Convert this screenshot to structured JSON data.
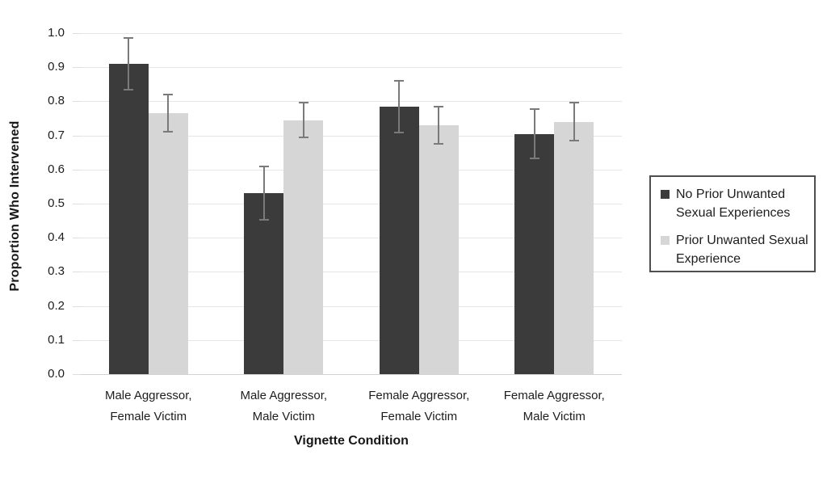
{
  "chart_data": {
    "type": "bar",
    "title": "",
    "xlabel": "Vignette Condition",
    "ylabel": "Proportion Who Intervened",
    "ylim": [
      0,
      1.0
    ],
    "ytick_step": 0.1,
    "ytick_labels": [
      "0.0",
      "0.1",
      "0.2",
      "0.3",
      "0.4",
      "0.5",
      "0.6",
      "0.7",
      "0.8",
      "0.9",
      "1.0"
    ],
    "grid": true,
    "legend_position": "right",
    "categories": [
      "Male Aggressor, Female Victim",
      "Male Aggressor, Male Victim",
      "Female Aggressor, Female Victim",
      "Female Aggressor, Male Victim"
    ],
    "category_label_lines": [
      [
        "Male Aggressor,",
        "Female Victim"
      ],
      [
        "Male Aggressor,",
        "Male Victim"
      ],
      [
        "Female Aggressor,",
        "Female Victim"
      ],
      [
        "Female Aggressor,",
        "Male Victim"
      ]
    ],
    "series": [
      {
        "name": "No Prior Unwanted Sexual Experiences",
        "legend_lines": [
          "No Prior Unwanted",
          "Sexual Experiences"
        ],
        "color": "#3b3b3b",
        "values": [
          0.91,
          0.53,
          0.785,
          0.705
        ],
        "error_bars": [
          0.075,
          0.078,
          0.076,
          0.072
        ]
      },
      {
        "name": "Prior Unwanted Sexual Experience",
        "legend_lines": [
          "Prior Unwanted Sexual",
          "Experience"
        ],
        "color": "#d6d6d6",
        "values": [
          0.765,
          0.745,
          0.73,
          0.74
        ],
        "error_bars": [
          0.055,
          0.051,
          0.055,
          0.056
        ]
      }
    ],
    "error_bar_color": "#7a7a7a"
  },
  "colors": {
    "gridline": "#e6e6e6",
    "baseline": "#d2d2d2",
    "legend_border": "#4f4f4f",
    "text": "#1d1d1d"
  }
}
